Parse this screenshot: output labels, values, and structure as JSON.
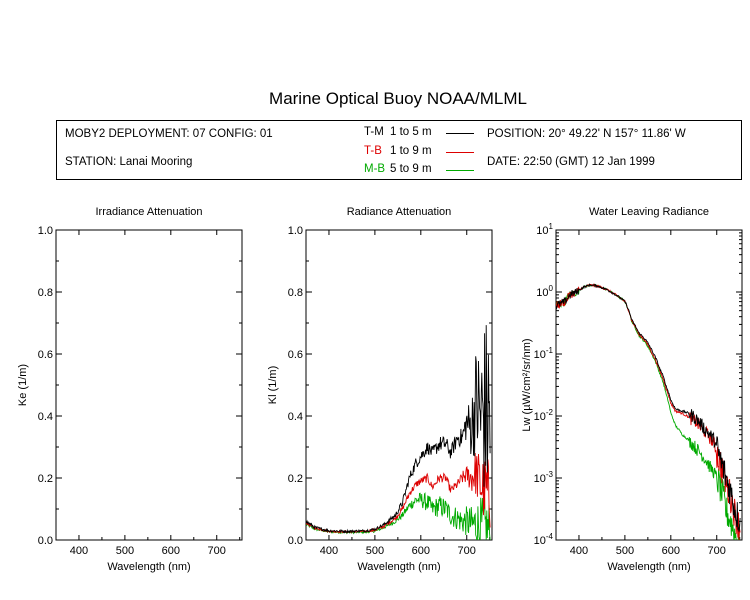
{
  "header": {
    "title": "Marine Optical Buoy NOAA/MLML",
    "deployment": "MOBY2 DEPLOYMENT: 07 CONFIG: 01",
    "station": "STATION: Lanai Mooring",
    "position": "POSITION: 20° 49.22' N   157° 11.86' W",
    "date": "DATE: 22:50 (GMT) 12 Jan 1999"
  },
  "legend": [
    {
      "label": "T-M",
      "range": "1 to 5  m",
      "color": "#000000"
    },
    {
      "label": "T-B",
      "range": "1 to 9  m",
      "color": "#dd0000"
    },
    {
      "label": "M-B",
      "range": "5 to 9  m",
      "color": "#00aa00"
    }
  ],
  "chart_data": [
    {
      "type": "line",
      "title": "Irradiance Attenuation",
      "xlabel": "Wavelength (nm)",
      "ylabel": "Ke  (1/m)",
      "xlim": [
        350,
        755
      ],
      "ylim": [
        0,
        1.0
      ],
      "xticks": [
        400,
        500,
        600,
        700
      ],
      "yticks": [
        "0.0",
        "0.2",
        "0.4",
        "0.6",
        "0.8",
        "1.0"
      ],
      "series": []
    },
    {
      "type": "line",
      "title": "Radiance Attenuation",
      "xlabel": "Wavelength (nm)",
      "ylabel": "Kl  (1/m)",
      "xlim": [
        350,
        755
      ],
      "ylim": [
        0,
        1.0
      ],
      "xticks": [
        400,
        500,
        600,
        700
      ],
      "yticks": [
        "0.0",
        "0.2",
        "0.4",
        "0.6",
        "0.8",
        "1.0"
      ],
      "series": [
        {
          "key": "T-M",
          "x": [
            350,
            370,
            400,
            440,
            480,
            500,
            520,
            545,
            560,
            575,
            590,
            600,
            615,
            625,
            640,
            655,
            665,
            680,
            690,
            700,
            710,
            720,
            730,
            740,
            750
          ],
          "y": [
            0.06,
            0.04,
            0.03,
            0.028,
            0.03,
            0.035,
            0.05,
            0.08,
            0.12,
            0.2,
            0.25,
            0.27,
            0.3,
            0.28,
            0.31,
            0.31,
            0.28,
            0.33,
            0.33,
            0.38,
            0.36,
            0.45,
            0.4,
            0.42,
            0.4
          ],
          "noise": [
            0.005,
            0.005,
            0.004,
            0.004,
            0.004,
            0.004,
            0.005,
            0.008,
            0.012,
            0.015,
            0.02,
            0.02,
            0.02,
            0.02,
            0.025,
            0.025,
            0.02,
            0.03,
            0.03,
            0.06,
            0.1,
            0.18,
            0.25,
            0.3,
            0.35
          ]
        },
        {
          "key": "T-B",
          "x": [
            350,
            370,
            400,
            440,
            480,
            500,
            520,
            545,
            560,
            575,
            590,
            600,
            615,
            625,
            640,
            655,
            665,
            680,
            690,
            700,
            710,
            720,
            730,
            740,
            750
          ],
          "y": [
            0.055,
            0.038,
            0.028,
            0.026,
            0.028,
            0.032,
            0.045,
            0.07,
            0.1,
            0.15,
            0.18,
            0.19,
            0.2,
            0.17,
            0.2,
            0.2,
            0.16,
            0.18,
            0.2,
            0.21,
            0.2,
            0.22,
            0.18,
            0.16,
            0.14
          ],
          "noise": [
            0.004,
            0.004,
            0.003,
            0.003,
            0.003,
            0.004,
            0.005,
            0.006,
            0.008,
            0.01,
            0.012,
            0.012,
            0.014,
            0.012,
            0.014,
            0.014,
            0.012,
            0.015,
            0.02,
            0.03,
            0.05,
            0.08,
            0.1,
            0.12,
            0.12
          ]
        },
        {
          "key": "M-B",
          "x": [
            350,
            370,
            400,
            440,
            480,
            500,
            520,
            545,
            560,
            575,
            590,
            600,
            615,
            625,
            640,
            655,
            665,
            680,
            690,
            700,
            710,
            720,
            730,
            740,
            750
          ],
          "y": [
            0.05,
            0.035,
            0.026,
            0.024,
            0.025,
            0.028,
            0.04,
            0.06,
            0.08,
            0.11,
            0.13,
            0.13,
            0.12,
            0.1,
            0.11,
            0.1,
            0.08,
            0.07,
            0.06,
            0.06,
            0.05,
            0.05,
            0.04,
            0.04,
            0.03
          ],
          "noise": [
            0.004,
            0.004,
            0.003,
            0.003,
            0.003,
            0.003,
            0.004,
            0.006,
            0.01,
            0.015,
            0.02,
            0.025,
            0.03,
            0.03,
            0.035,
            0.035,
            0.035,
            0.04,
            0.04,
            0.05,
            0.06,
            0.08,
            0.1,
            0.1,
            0.1
          ]
        }
      ]
    },
    {
      "type": "line",
      "title": "Water Leaving Radiance",
      "xlabel": "Wavelength (nm)",
      "ylabel": "Lw  (µW/cm²/sr/nm)",
      "xlim": [
        350,
        755
      ],
      "ylim_log10": [
        -4,
        1
      ],
      "yscale": "log",
      "xticks": [
        400,
        500,
        600,
        700
      ],
      "ytick_exponents": [
        1,
        0,
        -1,
        -2,
        -3,
        -4
      ],
      "series": [
        {
          "key": "T-M",
          "x": [
            350,
            370,
            380,
            395,
            410,
            425,
            440,
            460,
            480,
            500,
            515,
            530,
            545,
            560,
            575,
            590,
            600,
            610,
            625,
            640,
            655,
            665,
            675,
            685,
            695,
            700,
            710,
            720,
            730,
            740,
            750
          ],
          "y": [
            0.6,
            0.7,
            0.9,
            1.0,
            1.2,
            1.3,
            1.25,
            1.1,
            0.9,
            0.7,
            0.35,
            0.22,
            0.17,
            0.11,
            0.06,
            0.03,
            0.018,
            0.013,
            0.012,
            0.011,
            0.009,
            0.0075,
            0.006,
            0.005,
            0.004,
            0.003,
            0.0017,
            0.001,
            0.0006,
            0.0003,
            0.0002
          ]
        },
        {
          "key": "T-B",
          "x": [
            350,
            370,
            380,
            395,
            410,
            425,
            440,
            460,
            480,
            500,
            515,
            530,
            545,
            560,
            575,
            590,
            600,
            610,
            625,
            640,
            655,
            665,
            675,
            685,
            695,
            700,
            710,
            720,
            730,
            740,
            750
          ],
          "y": [
            0.6,
            0.7,
            0.9,
            1.0,
            1.2,
            1.3,
            1.25,
            1.1,
            0.9,
            0.7,
            0.34,
            0.21,
            0.16,
            0.1,
            0.055,
            0.027,
            0.016,
            0.012,
            0.011,
            0.0095,
            0.008,
            0.0065,
            0.0055,
            0.0045,
            0.0035,
            0.0025,
            0.0015,
            0.0008,
            0.0005,
            0.00025,
            0.00015
          ]
        },
        {
          "key": "M-B",
          "x": [
            350,
            370,
            380,
            395,
            410,
            425,
            440,
            460,
            480,
            500,
            515,
            530,
            545,
            560,
            575,
            590,
            600,
            610,
            625,
            640,
            655,
            665,
            675,
            685,
            695,
            700,
            710,
            720,
            730,
            740,
            750
          ],
          "y": [
            0.6,
            0.7,
            0.9,
            1.0,
            1.2,
            1.3,
            1.25,
            1.1,
            0.9,
            0.7,
            0.33,
            0.2,
            0.15,
            0.095,
            0.05,
            0.022,
            0.011,
            0.007,
            0.005,
            0.004,
            0.003,
            0.0025,
            0.002,
            0.0015,
            0.0012,
            0.001,
            0.0006,
            0.0003,
            0.0002,
            0.00012,
            0.0001
          ]
        }
      ]
    }
  ]
}
